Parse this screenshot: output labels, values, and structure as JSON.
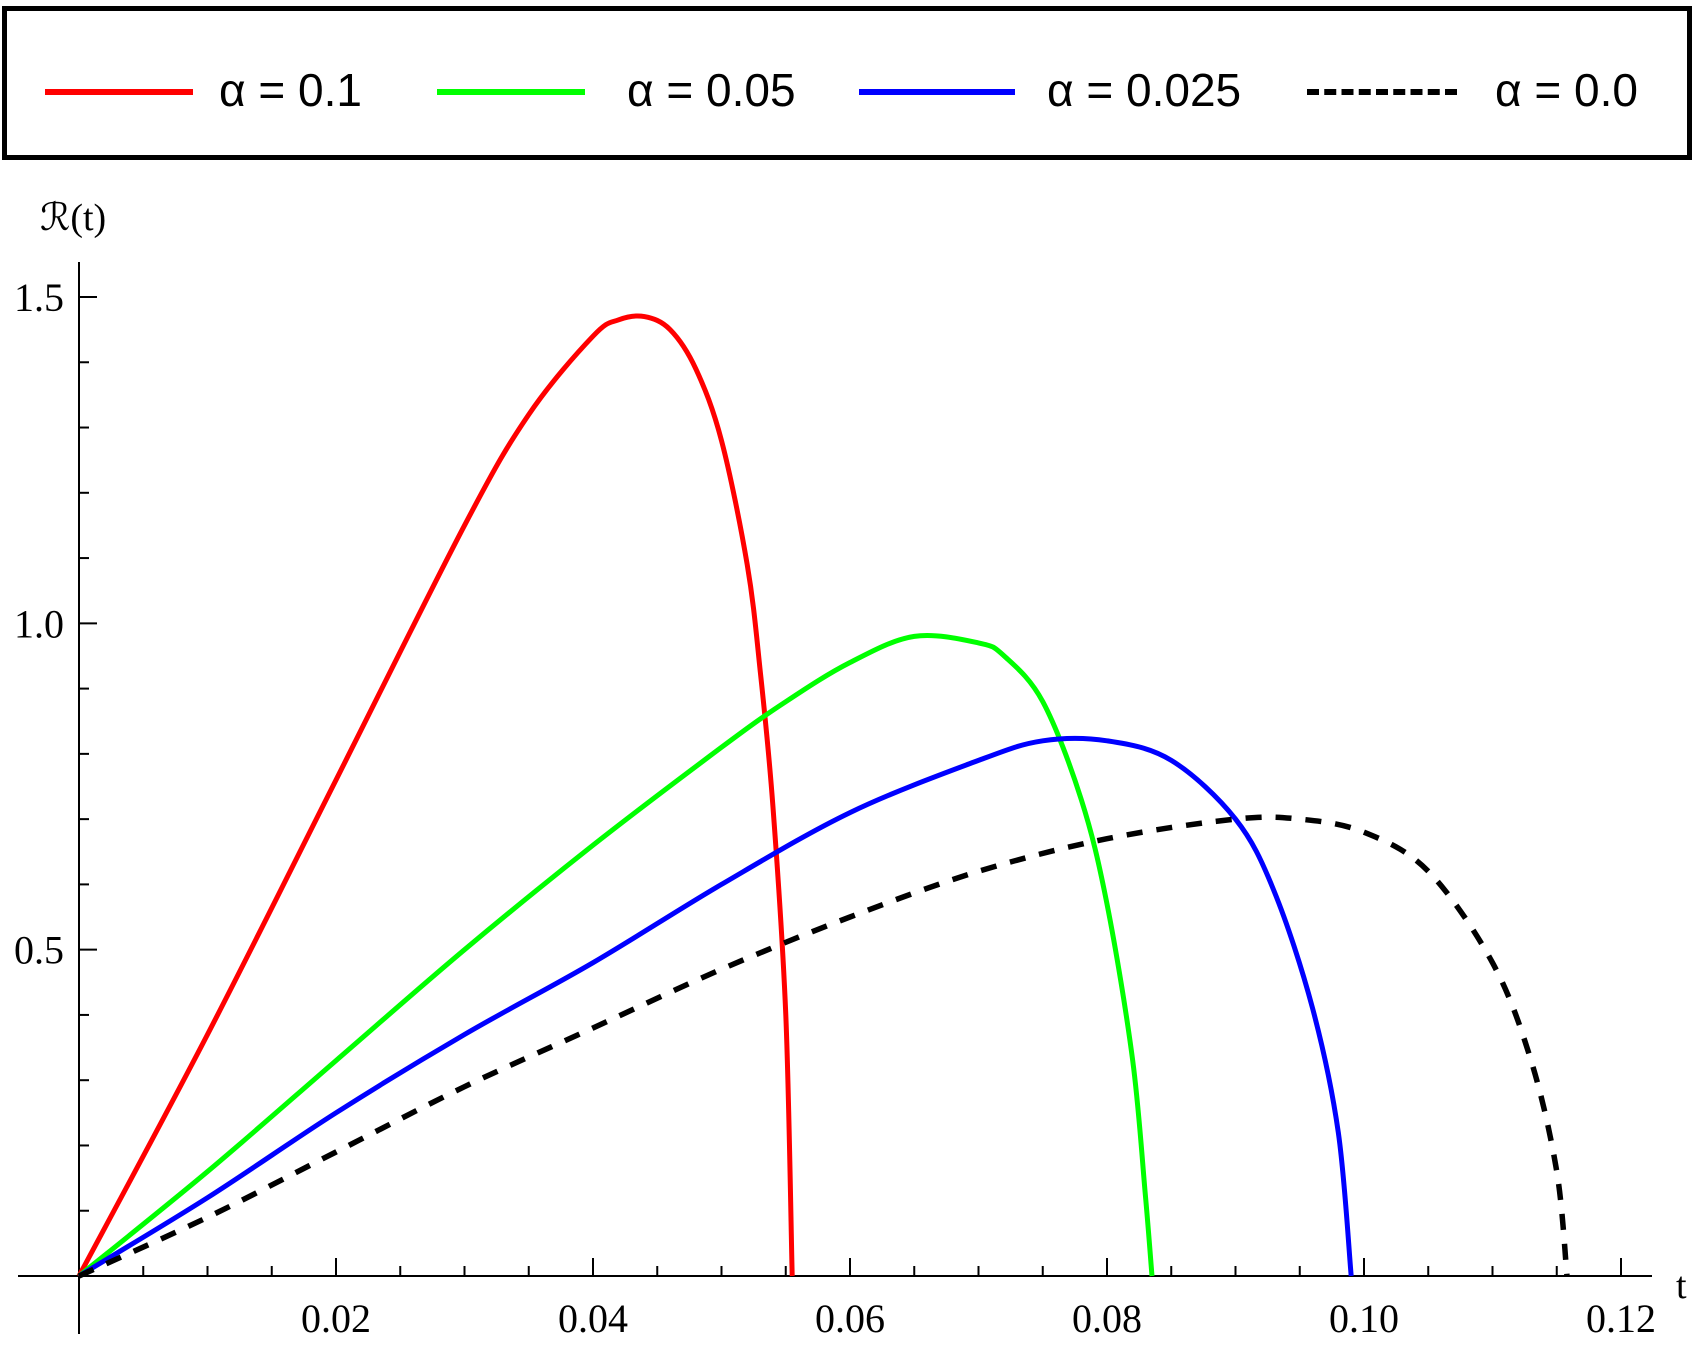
{
  "chart_data": {
    "type": "line",
    "title": "",
    "xlabel": "t",
    "ylabel": "ℛ(t)",
    "xlim": [
      0,
      0.12
    ],
    "ylim": [
      0,
      1.5
    ],
    "x_ticks": [
      "0.02",
      "0.04",
      "0.06",
      "0.08",
      "0.10",
      "0.12"
    ],
    "y_ticks": [
      "0.5",
      "1.0",
      "1.5"
    ],
    "legend_position": "top, outside plot",
    "series": [
      {
        "name": "α = 0.1",
        "color": "#ff0000",
        "dash": "solid",
        "x": [
          0,
          0.01,
          0.02,
          0.03,
          0.035,
          0.04,
          0.042,
          0.044,
          0.046,
          0.048,
          0.05,
          0.052,
          0.053,
          0.054,
          0.055,
          0.0555
        ],
        "y": [
          0,
          0.37,
          0.76,
          1.15,
          1.32,
          1.44,
          1.465,
          1.47,
          1.45,
          1.39,
          1.28,
          1.09,
          0.93,
          0.72,
          0.4,
          0.0
        ]
      },
      {
        "name": "α = 0.05",
        "color": "#00ff00",
        "dash": "solid",
        "x": [
          0,
          0.01,
          0.02,
          0.03,
          0.04,
          0.05,
          0.055,
          0.06,
          0.065,
          0.07,
          0.072,
          0.075,
          0.078,
          0.08,
          0.082,
          0.083,
          0.0835
        ],
        "y": [
          0,
          0.16,
          0.33,
          0.5,
          0.66,
          0.81,
          0.88,
          0.94,
          0.98,
          0.97,
          0.95,
          0.88,
          0.73,
          0.57,
          0.33,
          0.12,
          0.0
        ]
      },
      {
        "name": "α = 0.025",
        "color": "#0000ff",
        "dash": "solid",
        "x": [
          0,
          0.01,
          0.02,
          0.03,
          0.04,
          0.05,
          0.06,
          0.07,
          0.075,
          0.08,
          0.085,
          0.09,
          0.093,
          0.096,
          0.098,
          0.099
        ],
        "y": [
          0,
          0.12,
          0.25,
          0.37,
          0.48,
          0.6,
          0.71,
          0.79,
          0.82,
          0.82,
          0.79,
          0.7,
          0.59,
          0.41,
          0.22,
          0.0
        ]
      },
      {
        "name": "α = 0.0",
        "color": "#000000",
        "dash": "dashed",
        "x": [
          0,
          0.01,
          0.02,
          0.03,
          0.04,
          0.05,
          0.06,
          0.07,
          0.08,
          0.09,
          0.095,
          0.1,
          0.105,
          0.11,
          0.113,
          0.115,
          0.1158
        ],
        "y": [
          0,
          0.09,
          0.19,
          0.29,
          0.38,
          0.47,
          0.55,
          0.62,
          0.67,
          0.7,
          0.7,
          0.68,
          0.62,
          0.48,
          0.33,
          0.16,
          0.0
        ]
      }
    ]
  }
}
